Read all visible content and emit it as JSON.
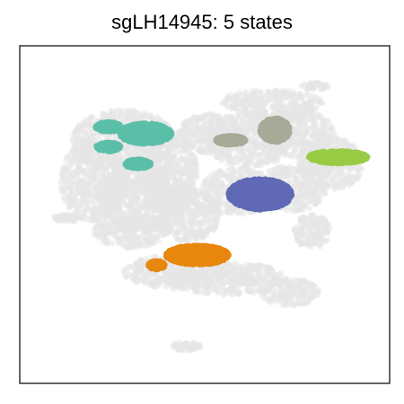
{
  "chart_data": {
    "type": "scatter",
    "title": "sgLH14945: 5 states",
    "xlabel": "",
    "ylabel": "",
    "grid": false,
    "axis_ticks": false,
    "legend": "none",
    "background_color": "#e6e6e6",
    "series": [
      {
        "color": "#5bbfa8",
        "regions": [
          {
            "cx": 0.24,
            "cy": 0.76,
            "rx": 0.035,
            "ry": 0.014
          },
          {
            "cx": 0.34,
            "cy": 0.74,
            "rx": 0.07,
            "ry": 0.03
          },
          {
            "cx": 0.24,
            "cy": 0.7,
            "rx": 0.033,
            "ry": 0.013
          },
          {
            "cx": 0.32,
            "cy": 0.65,
            "rx": 0.035,
            "ry": 0.013
          }
        ]
      },
      {
        "color": "#a8aa98",
        "regions": [
          {
            "cx": 0.57,
            "cy": 0.72,
            "rx": 0.04,
            "ry": 0.013
          },
          {
            "cx": 0.69,
            "cy": 0.75,
            "rx": 0.04,
            "ry": 0.035
          }
        ]
      },
      {
        "color": "#9acb45",
        "regions": [
          {
            "cx": 0.86,
            "cy": 0.67,
            "rx": 0.08,
            "ry": 0.018
          }
        ]
      },
      {
        "color": "#6069b5",
        "regions": [
          {
            "cx": 0.65,
            "cy": 0.56,
            "rx": 0.085,
            "ry": 0.045
          }
        ]
      },
      {
        "color": "#e8870e",
        "regions": [
          {
            "cx": 0.48,
            "cy": 0.38,
            "rx": 0.085,
            "ry": 0.028
          },
          {
            "cx": 0.37,
            "cy": 0.35,
            "rx": 0.022,
            "ry": 0.012
          }
        ]
      }
    ]
  }
}
